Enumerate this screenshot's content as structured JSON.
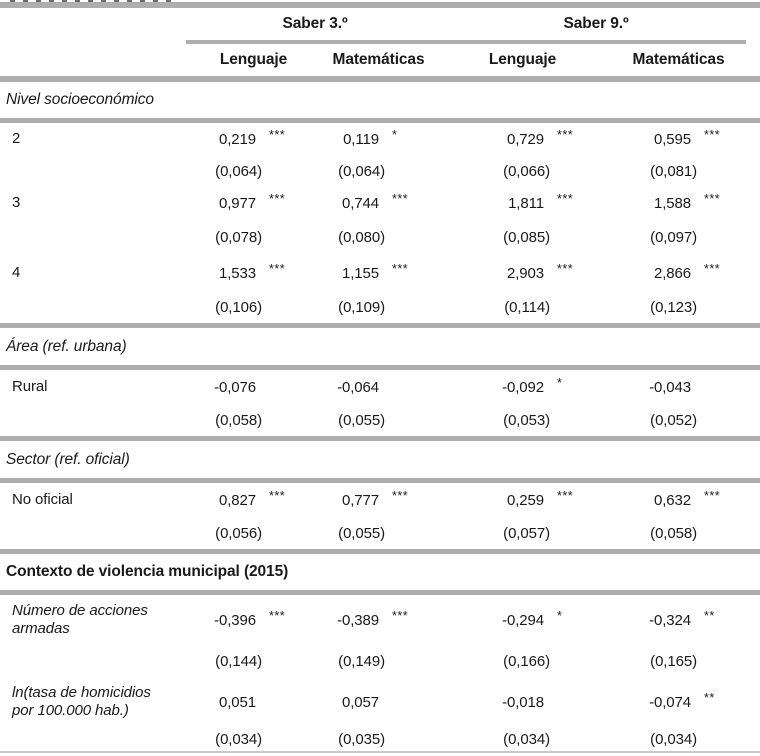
{
  "header": {
    "groups": [
      {
        "label": "Saber 3.º",
        "subjects": [
          "Lenguaje",
          "Matemáticas"
        ]
      },
      {
        "label": "Saber 9.º",
        "subjects": [
          "Lenguaje",
          "Matemáticas"
        ]
      }
    ]
  },
  "sections": [
    {
      "title": "Nivel socioeconómico",
      "rows": [
        {
          "label": "2",
          "coef": [
            "0,219",
            "0,119",
            "0,729",
            "0,595"
          ],
          "stars": [
            "***",
            "*",
            "***",
            "***"
          ],
          "se": [
            "(0,064)",
            "(0,064)",
            "(0,066)",
            "(0,081)"
          ]
        },
        {
          "label": "3",
          "coef": [
            "0,977",
            "0,744",
            "1,811",
            "1,588"
          ],
          "stars": [
            "***",
            "***",
            "***",
            "***"
          ],
          "se": [
            "(0,078)",
            "(0,080)",
            "(0,085)",
            "(0,097)"
          ]
        },
        {
          "label": "4",
          "coef": [
            "1,533",
            "1,155",
            "2,903",
            "2,866"
          ],
          "stars": [
            "***",
            "***",
            "***",
            "***"
          ],
          "se": [
            "(0,106)",
            "(0,109)",
            "(0,114)",
            "(0,123)"
          ]
        }
      ]
    },
    {
      "title": "Área (ref. urbana)",
      "rows": [
        {
          "label": "Rural",
          "coef": [
            "-0,076",
            "-0,064",
            "-0,092",
            "-0,043"
          ],
          "stars": [
            "",
            "",
            "*",
            ""
          ],
          "se": [
            "(0,058)",
            "(0,055)",
            "(0,053)",
            "(0,052)"
          ]
        }
      ]
    },
    {
      "title": "Sector (ref. oficial)",
      "rows": [
        {
          "label": "No oficial",
          "coef": [
            "0,827",
            "0,777",
            "0,259",
            "0,632"
          ],
          "stars": [
            "***",
            "***",
            "***",
            "***"
          ],
          "se": [
            "(0,056)",
            "(0,055)",
            "(0,057)",
            "(0,058)"
          ]
        }
      ]
    },
    {
      "title": "Contexto de violencia municipal (2015)",
      "rows": [
        {
          "label": "Número de acciones armadas",
          "coef": [
            "-0,396",
            "-0,389",
            "-0,294",
            "-0,324"
          ],
          "stars": [
            "***",
            "***",
            "*",
            "**"
          ],
          "se": [
            "(0,144)",
            "(0,149)",
            "(0,166)",
            "(0,165)"
          ]
        },
        {
          "label": "ln(tasa de homicidios por 100.000 hab.)",
          "coef": [
            "0,051",
            "0,057",
            "-0,018",
            "-0,074"
          ],
          "stars": [
            "",
            "",
            "",
            "**"
          ],
          "se": [
            "(0,034)",
            "(0,035)",
            "(0,034)",
            "(0,034)"
          ]
        }
      ]
    }
  ],
  "colors": {
    "rule_gray": "#aeaeae",
    "rule_light": "#c9c9c9",
    "text": "#1a1a1a"
  }
}
